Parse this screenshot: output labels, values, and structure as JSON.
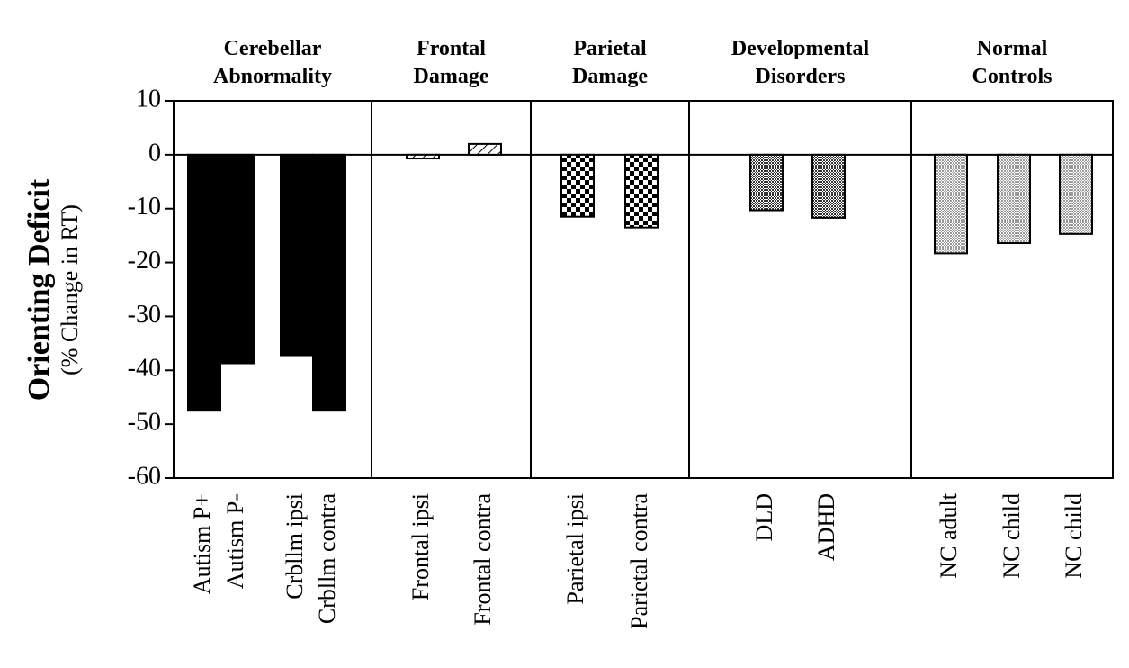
{
  "chart_data": {
    "type": "bar",
    "y_label": "Orienting Deficit",
    "y_sublabel": "(% Change in RT)",
    "ylim": [
      -60,
      10
    ],
    "yticks": [
      10,
      0,
      -10,
      -20,
      -30,
      -40,
      -50,
      -60
    ],
    "series": [
      {
        "name": "Cerebellar Abnormality",
        "color": "#000000",
        "pattern": "solid",
        "categories": [
          "Autism  P+",
          "Autism P-",
          "Crbllm ipsi",
          "Crbllm contra"
        ],
        "values": [
          -47.5,
          -38.7,
          -37.2,
          -47.5
        ]
      },
      {
        "name": "Frontal Damage",
        "color": "#000000",
        "pattern": "hatch",
        "categories": [
          "Frontal  ipsi",
          "Frontal  contra"
        ],
        "values": [
          -0.7,
          2
        ]
      },
      {
        "name": "Parietal Damage",
        "color": "#000000",
        "pattern": "checker",
        "categories": [
          "Parietal ipsi",
          "Parietal contra"
        ],
        "values": [
          -11.5,
          -13.5
        ]
      },
      {
        "name": "Developmental Disorders",
        "color": "#333333",
        "pattern": "dots",
        "categories": [
          "DLD",
          "ADHD"
        ],
        "values": [
          -10.3,
          -11.7
        ]
      },
      {
        "name": "Normal Controls",
        "color": "#999999",
        "pattern": "dots",
        "categories": [
          "NC adult",
          "NC child",
          "NC child"
        ],
        "values": [
          -18.3,
          -16.4,
          -14.7
        ]
      }
    ]
  }
}
